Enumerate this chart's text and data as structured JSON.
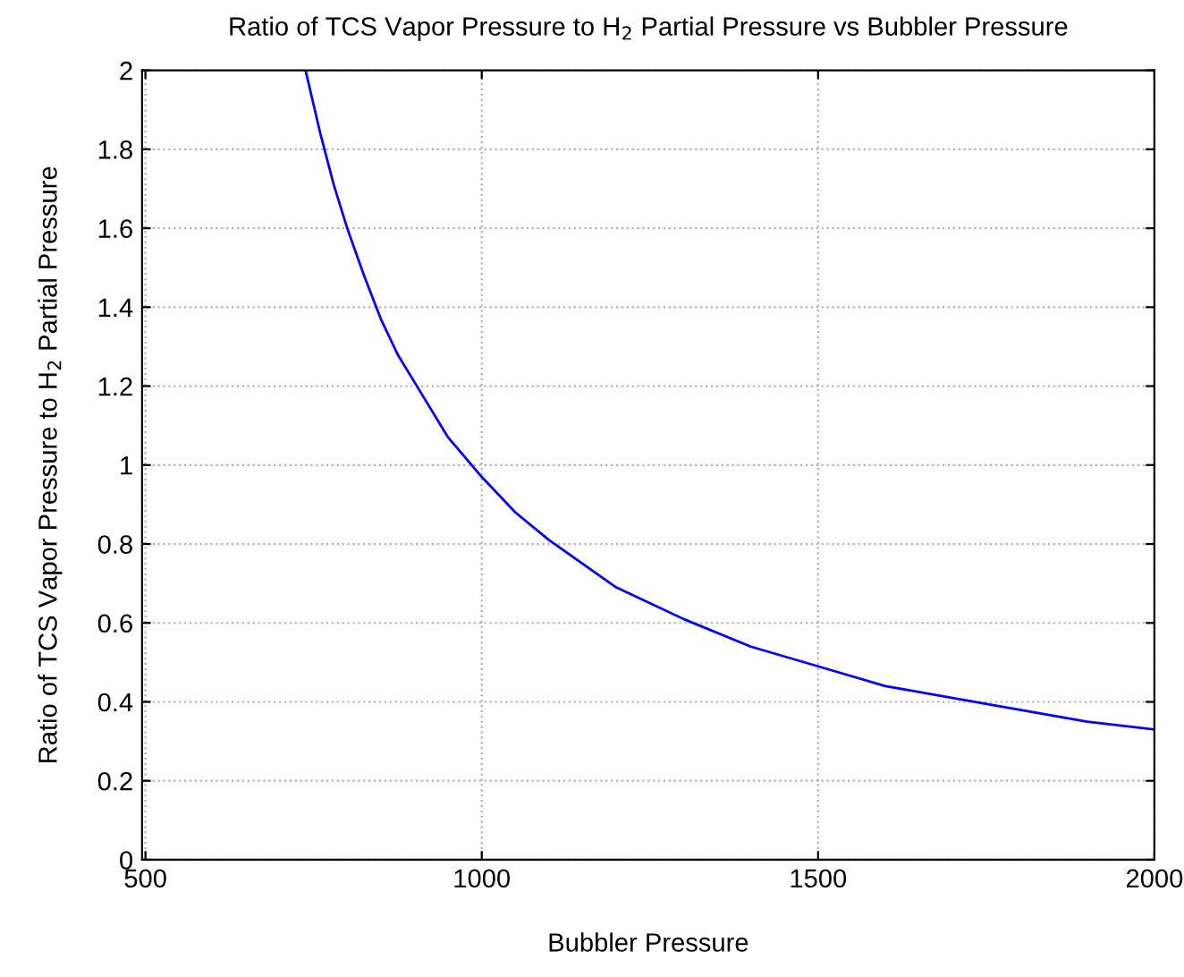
{
  "chart_data": {
    "type": "line",
    "title": "Ratio of TCS Vapor Pressure to H$_{2}$ Partial Pressure vs Bubbler Pressure",
    "xlabel": "Bubbler Pressure",
    "ylabel": "Ratio of TCS Vapor Pressure to H$_{2}$ Partial Pressure",
    "x": [
      738,
      760,
      780,
      800,
      825,
      850,
      875,
      900,
      950,
      1000,
      1050,
      1100,
      1200,
      1300,
      1400,
      1500,
      1600,
      1700,
      1800,
      1900,
      2000
    ],
    "series": [
      {
        "color": "#0000ff",
        "values": [
          2.0,
          1.84,
          1.71,
          1.6,
          1.48,
          1.37,
          1.28,
          1.21,
          1.07,
          0.97,
          0.88,
          0.81,
          0.69,
          0.61,
          0.54,
          0.49,
          0.44,
          0.41,
          0.38,
          0.35,
          0.33
        ]
      }
    ],
    "xlim": [
      495,
      2000
    ],
    "ylim": [
      0,
      2
    ],
    "xticks": [
      500,
      1000,
      1500,
      2000
    ],
    "yticks": [
      0,
      0.2,
      0.4,
      0.6,
      0.8,
      1,
      1.2,
      1.4,
      1.6,
      1.8,
      2
    ],
    "grid": true,
    "line_style": "solid",
    "marker": "none"
  }
}
